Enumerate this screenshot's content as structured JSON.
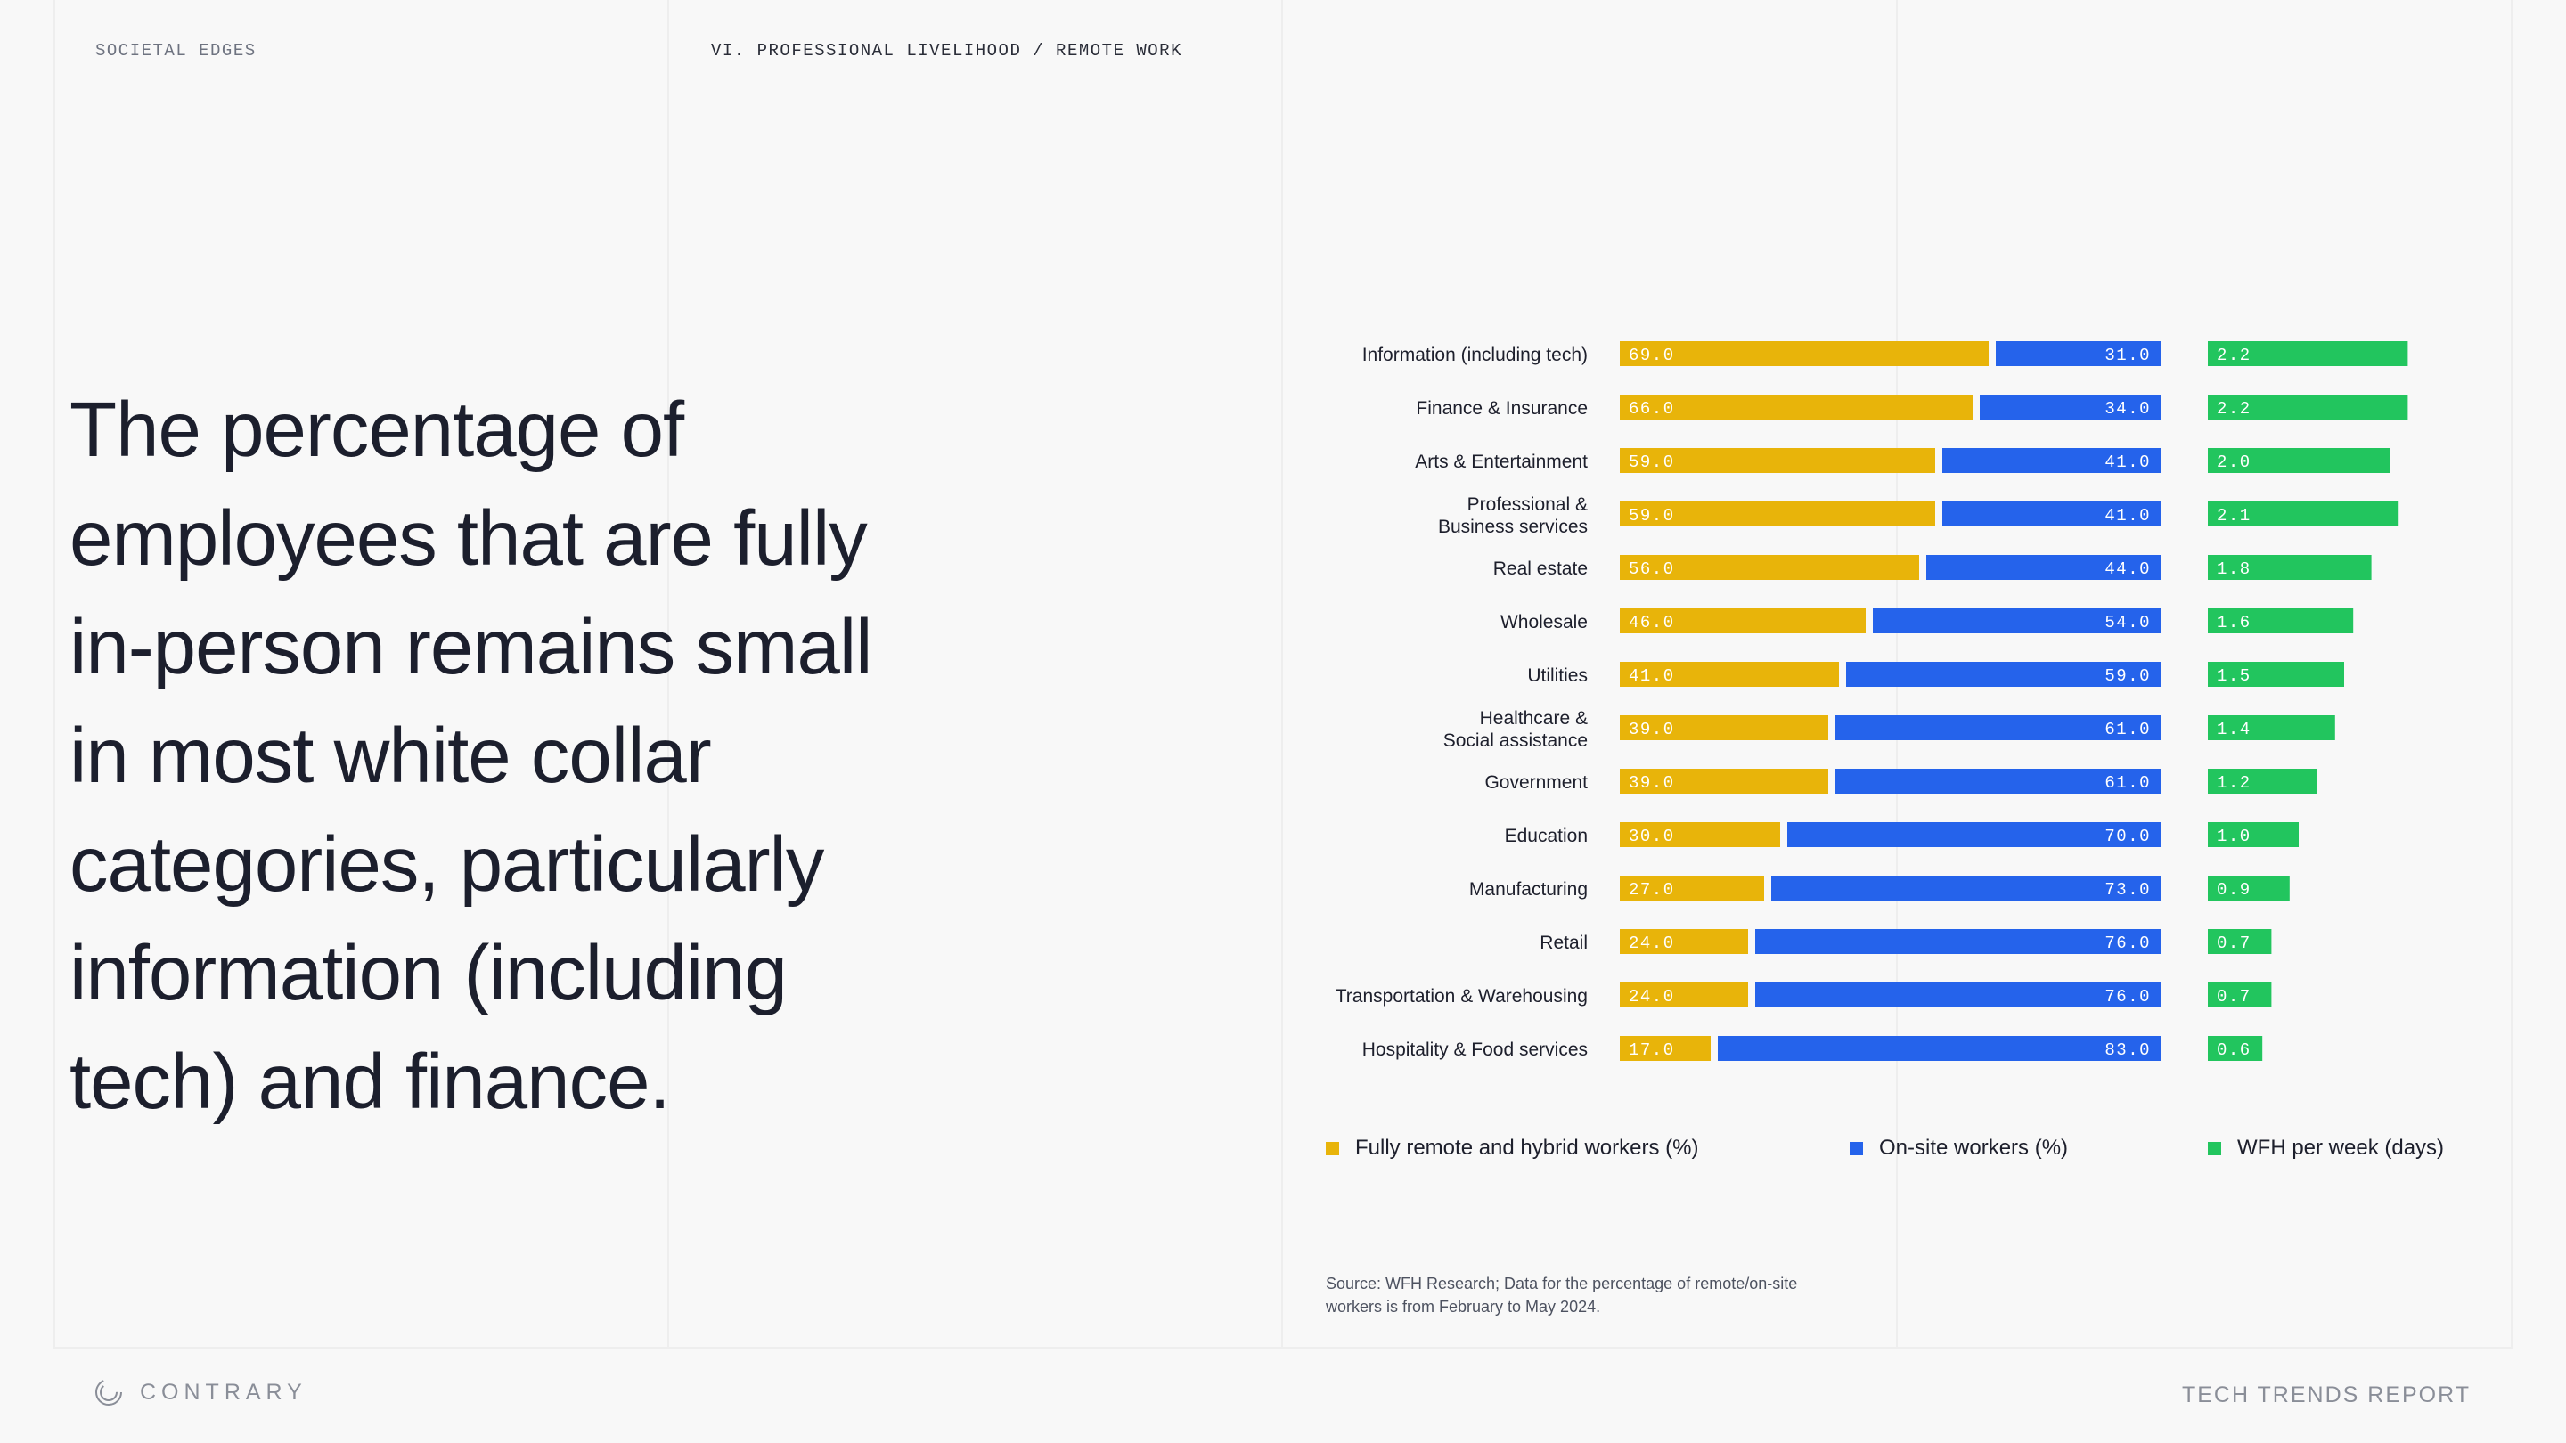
{
  "header": {
    "section": "SOCIETAL EDGES",
    "breadcrumb": "VI. PROFESSIONAL LIVELIHOOD / REMOTE WORK"
  },
  "headline": "The percentage of employees that are fully in-person remains small in most white collar categories, particularly information (including tech) and finance.",
  "chart_data": {
    "type": "bar",
    "categories": [
      [
        "Information (including tech)"
      ],
      [
        "Finance & Insurance"
      ],
      [
        "Arts & Entertainment"
      ],
      [
        "Professional &",
        "Business services"
      ],
      [
        "Real estate"
      ],
      [
        "Wholesale"
      ],
      [
        "Utilities"
      ],
      [
        "Healthcare &",
        "Social assistance"
      ],
      [
        "Government"
      ],
      [
        "Education"
      ],
      [
        "Manufacturing"
      ],
      [
        "Retail"
      ],
      [
        "Transportation & Warehousing"
      ],
      [
        "Hospitality & Food services"
      ]
    ],
    "series": [
      {
        "name": "Fully remote and hybrid workers (%)",
        "color": "#e8b40a",
        "values": [
          69.0,
          66.0,
          59.0,
          59.0,
          56.0,
          46.0,
          41.0,
          39.0,
          39.0,
          30.0,
          27.0,
          24.0,
          24.0,
          17.0
        ]
      },
      {
        "name": "On-site workers (%)",
        "color": "#2563eb",
        "values": [
          31.0,
          34.0,
          41.0,
          41.0,
          44.0,
          54.0,
          59.0,
          61.0,
          61.0,
          70.0,
          73.0,
          76.0,
          76.0,
          83.0
        ]
      },
      {
        "name": "WFH per week (days)",
        "color": "#22c55e",
        "values": [
          2.2,
          2.2,
          2.0,
          2.1,
          1.8,
          1.6,
          1.5,
          1.4,
          1.2,
          1.0,
          0.9,
          0.7,
          0.7,
          0.6
        ]
      }
    ],
    "stacked_total": 100,
    "wfh_max": 2.5,
    "value_format": "one-decimal"
  },
  "legend": {
    "remote": "Fully remote and hybrid workers (%)",
    "onsite": "On-site workers (%)",
    "wfh": "WFH per week (days)"
  },
  "source_note": "Source: WFH Research; Data for the percentage of remote/on-site workers is from February to May 2024.",
  "footer": {
    "brand": "CONTRARY",
    "report": "TECH TRENDS REPORT"
  }
}
